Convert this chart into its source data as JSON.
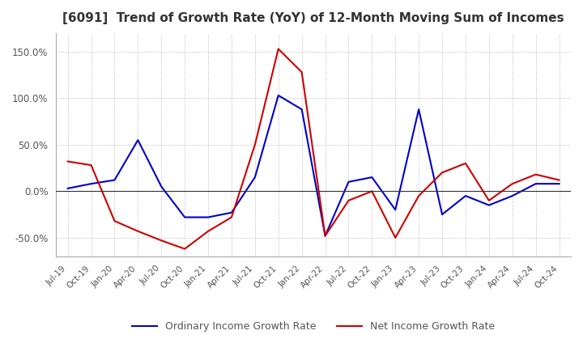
{
  "title": "[6091]  Trend of Growth Rate (YoY) of 12-Month Moving Sum of Incomes",
  "title_fontsize": 11,
  "ylim": [
    -70,
    170
  ],
  "yticks": [
    -50.0,
    0.0,
    50.0,
    100.0,
    150.0
  ],
  "legend_labels": [
    "Ordinary Income Growth Rate",
    "Net Income Growth Rate"
  ],
  "line_colors": [
    "#0000cc",
    "#cc0000"
  ],
  "ordinary_income_growth": [
    3.0,
    8.0,
    12.0,
    55.0,
    5.0,
    -28.0,
    -28.0,
    -23.0,
    15.0,
    103.0,
    88.0,
    -48.0,
    10.0,
    15.0,
    -20.0,
    88.0,
    -25.0,
    -5.0,
    -15.0,
    -5.0,
    8.0,
    8.0
  ],
  "net_income_growth": [
    32.0,
    28.0,
    -32.0,
    -43.0,
    -53.0,
    -62.0,
    -43.0,
    -28.0,
    50.0,
    153.0,
    128.0,
    -48.0,
    -10.0,
    0.0,
    -50.0,
    -5.0,
    20.0,
    30.0,
    -10.0,
    8.0,
    18.0,
    12.0
  ],
  "xtick_labels": [
    "Jul-19",
    "Oct-19",
    "Jan-20",
    "Apr-20",
    "Jul-20",
    "Oct-20",
    "Jan-21",
    "Apr-21",
    "Jul-21",
    "Oct-21",
    "Jan-22",
    "Apr-22",
    "Jul-22",
    "Oct-22",
    "Jan-23",
    "Apr-23",
    "Jul-23",
    "Oct-23",
    "Jan-24",
    "Apr-24",
    "Jul-24",
    "Oct-24"
  ],
  "background_color": "#ffffff",
  "grid_color": "#aaaaaa",
  "text_color": "#555555"
}
